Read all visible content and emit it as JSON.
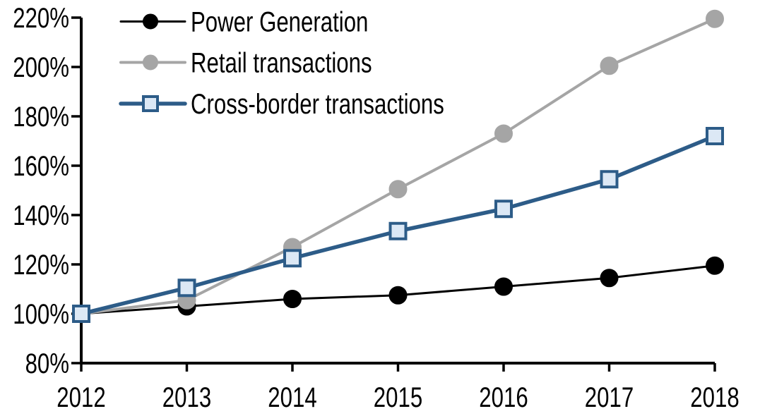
{
  "chart_data": {
    "type": "line",
    "title": "",
    "xlabel": "",
    "ylabel": "",
    "categories": [
      "2012",
      "2013",
      "2014",
      "2015",
      "2016",
      "2017",
      "2018"
    ],
    "series": [
      {
        "name": "Power Generation",
        "marker": "circle",
        "line_color": "#000000",
        "marker_fill": "#000000",
        "marker_stroke": "#000000",
        "line_width": 3,
        "values": [
          100,
          103,
          106,
          107.5,
          111,
          114.5,
          119.5
        ]
      },
      {
        "name": "Retail transactions",
        "marker": "circle",
        "line_color": "#A5A5A5",
        "marker_fill": "#A5A5A5",
        "marker_stroke": "#A5A5A5",
        "line_width": 4,
        "values": [
          100,
          105.5,
          127,
          150.5,
          173,
          200.5,
          219.5
        ]
      },
      {
        "name": "Cross-border transactions",
        "marker": "square",
        "line_color": "#2D5C88",
        "marker_fill": "#DCE8F5",
        "marker_stroke": "#2D5C88",
        "line_width": 5.5,
        "values": [
          100,
          110.5,
          122.5,
          133.5,
          142.5,
          154.5,
          172
        ]
      }
    ],
    "ylim": [
      80,
      220
    ],
    "ytick_step": 20,
    "ytick_labels": [
      "80%",
      "100%",
      "120%",
      "140%",
      "160%",
      "180%",
      "200%",
      "220%"
    ],
    "grid": false,
    "legend_position": "top-left-inside",
    "axis_color": "#000000",
    "background_color": "#FFFFFF"
  }
}
